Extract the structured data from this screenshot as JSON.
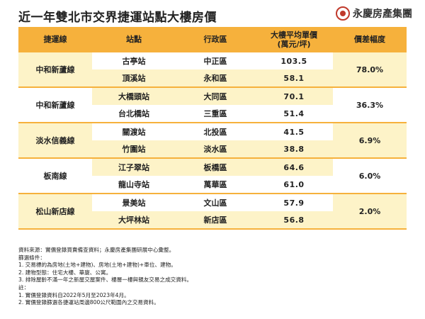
{
  "title": "近一年雙北市交界捷運站點大樓房價",
  "brand": {
    "name": "永慶房產集團",
    "logo_icon": "red-circle-logo-icon"
  },
  "colors": {
    "header": "#f6b13c",
    "shade": "#fdf3c8",
    "brand": "#c0392b"
  },
  "table": {
    "headers": {
      "line": "捷運線",
      "station": "站點",
      "district": "行政區",
      "price": "大樓平均單價\n(萬元/坪)",
      "diff": "價差幅度"
    },
    "groups": [
      {
        "line": "中和新蘆線",
        "diff": "78.0%",
        "rows": [
          {
            "station": "古亭站",
            "district": "中正區",
            "price": "103.5"
          },
          {
            "station": "頂溪站",
            "district": "永和區",
            "price": "58.1"
          }
        ]
      },
      {
        "line": "中和新蘆線",
        "diff": "36.3%",
        "rows": [
          {
            "station": "大橋頭站",
            "district": "大同區",
            "price": "70.1"
          },
          {
            "station": "台北橋站",
            "district": "三重區",
            "price": "51.4"
          }
        ]
      },
      {
        "line": "淡水信義線",
        "diff": "6.9%",
        "rows": [
          {
            "station": "關渡站",
            "district": "北投區",
            "price": "41.5"
          },
          {
            "station": "竹圍站",
            "district": "淡水區",
            "price": "38.8"
          }
        ]
      },
      {
        "line": "板南線",
        "diff": "6.0%",
        "rows": [
          {
            "station": "江子翠站",
            "district": "板橋區",
            "price": "64.6"
          },
          {
            "station": "龍山寺站",
            "district": "萬華區",
            "price": "61.0"
          }
        ]
      },
      {
        "line": "松山新店線",
        "diff": "2.0%",
        "rows": [
          {
            "station": "景美站",
            "district": "文山區",
            "price": "57.9"
          },
          {
            "station": "大坪林站",
            "district": "新店區",
            "price": "56.8"
          }
        ]
      }
    ]
  },
  "notes": [
    "資料來源：實價登錄買賣備查資料；永慶房產集團研展中心彙整。",
    "篩選條件：",
    "1. 交易標的為房地(土地+建物)、房地(土地+建物)+車位、建物。",
    "2. 建物型態：住宅大樓、華廈、公寓。",
    "3. 排除屋齡不滿一年之新屋交屋案件、樓層一樓與親友交易之成交資料。",
    "註：",
    "1. 實價登錄資料自2022年5月至2023年4月。",
    "2. 實價登錄篩選各捷運站周邊800公尺範圍內之交易資料。"
  ]
}
